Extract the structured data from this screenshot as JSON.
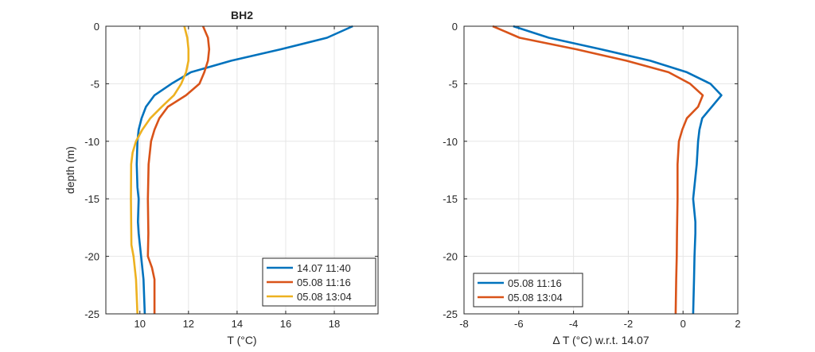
{
  "chart_data": [
    {
      "type": "line",
      "title": "BH2",
      "xlabel": "T (°C)",
      "ylabel": "depth (m)",
      "xlim": [
        8.6,
        19.8
      ],
      "ylim": [
        -25,
        0
      ],
      "xticks": [
        10,
        12,
        14,
        16,
        18
      ],
      "yticks": [
        0,
        -5,
        -10,
        -15,
        -20,
        -25
      ],
      "grid": true,
      "legend_position": "bottom-right",
      "series": [
        {
          "name": "14.07 11:40",
          "color": "#0072BD",
          "points": [
            [
              18.76,
              0
            ],
            [
              17.7,
              -1
            ],
            [
              15.8,
              -2
            ],
            [
              13.76,
              -3
            ],
            [
              12.1,
              -4
            ],
            [
              11.3,
              -5
            ],
            [
              10.6,
              -6
            ],
            [
              10.25,
              -7
            ],
            [
              10.07,
              -8
            ],
            [
              9.95,
              -9
            ],
            [
              9.9,
              -10
            ],
            [
              9.87,
              -12
            ],
            [
              9.9,
              -14
            ],
            [
              9.95,
              -15
            ],
            [
              9.92,
              -17
            ],
            [
              9.95,
              -18
            ],
            [
              10.05,
              -20
            ],
            [
              10.15,
              -22
            ],
            [
              10.2,
              -25
            ]
          ]
        },
        {
          "name": "05.08 11:16",
          "color": "#D95319",
          "points": [
            [
              12.6,
              0
            ],
            [
              12.8,
              -1
            ],
            [
              12.85,
              -2
            ],
            [
              12.8,
              -3
            ],
            [
              12.65,
              -4
            ],
            [
              12.45,
              -5
            ],
            [
              11.9,
              -6
            ],
            [
              11.15,
              -7
            ],
            [
              10.8,
              -8
            ],
            [
              10.6,
              -9
            ],
            [
              10.46,
              -10
            ],
            [
              10.36,
              -12
            ],
            [
              10.33,
              -15
            ],
            [
              10.35,
              -18
            ],
            [
              10.33,
              -20
            ],
            [
              10.5,
              -21
            ],
            [
              10.6,
              -22
            ],
            [
              10.6,
              -25
            ]
          ]
        },
        {
          "name": "05.08 13:04",
          "color": "#EDB120",
          "points": [
            [
              11.83,
              0
            ],
            [
              11.95,
              -1
            ],
            [
              12.0,
              -2
            ],
            [
              12.0,
              -3
            ],
            [
              11.9,
              -4
            ],
            [
              11.7,
              -5
            ],
            [
              11.4,
              -6
            ],
            [
              10.9,
              -7
            ],
            [
              10.43,
              -8
            ],
            [
              10.1,
              -9
            ],
            [
              9.84,
              -10
            ],
            [
              9.7,
              -11
            ],
            [
              9.64,
              -12
            ],
            [
              9.63,
              -15
            ],
            [
              9.65,
              -19
            ],
            [
              9.74,
              -20
            ],
            [
              9.84,
              -22
            ],
            [
              9.9,
              -25
            ]
          ]
        }
      ]
    },
    {
      "type": "line",
      "title": "",
      "xlabel": "Δ T (°C) w.r.t. 14.07",
      "ylabel": "",
      "xlim": [
        -8,
        2
      ],
      "ylim": [
        -25,
        0
      ],
      "xticks": [
        -8,
        -6,
        -4,
        -2,
        0,
        2
      ],
      "yticks": [
        0,
        -5,
        -10,
        -15,
        -20,
        -25
      ],
      "grid": true,
      "legend_position": "bottom-left",
      "series": [
        {
          "name": "05.08 11:16",
          "color": "#0072BD",
          "points": [
            [
              -6.2,
              0
            ],
            [
              -4.9,
              -1
            ],
            [
              -3.0,
              -2
            ],
            [
              -1.2,
              -3
            ],
            [
              0.14,
              -4
            ],
            [
              1.0,
              -5
            ],
            [
              1.4,
              -6
            ],
            [
              1.05,
              -7
            ],
            [
              0.7,
              -8
            ],
            [
              0.6,
              -9
            ],
            [
              0.55,
              -10
            ],
            [
              0.5,
              -12
            ],
            [
              0.37,
              -15
            ],
            [
              0.45,
              -17
            ],
            [
              0.45,
              -18
            ],
            [
              0.42,
              -20
            ],
            [
              0.4,
              -22
            ],
            [
              0.37,
              -25
            ]
          ]
        },
        {
          "name": "05.08 13:04",
          "color": "#D95319",
          "points": [
            [
              -6.95,
              0
            ],
            [
              -5.97,
              -1
            ],
            [
              -3.9,
              -2
            ],
            [
              -2.07,
              -3
            ],
            [
              -0.53,
              -4
            ],
            [
              0.26,
              -5
            ],
            [
              0.72,
              -6
            ],
            [
              0.55,
              -7
            ],
            [
              0.14,
              -8
            ],
            [
              -0.03,
              -9
            ],
            [
              -0.15,
              -10
            ],
            [
              -0.2,
              -12
            ],
            [
              -0.2,
              -15
            ],
            [
              -0.22,
              -18
            ],
            [
              -0.23,
              -20
            ],
            [
              -0.25,
              -22
            ],
            [
              -0.27,
              -25
            ]
          ]
        }
      ]
    }
  ]
}
